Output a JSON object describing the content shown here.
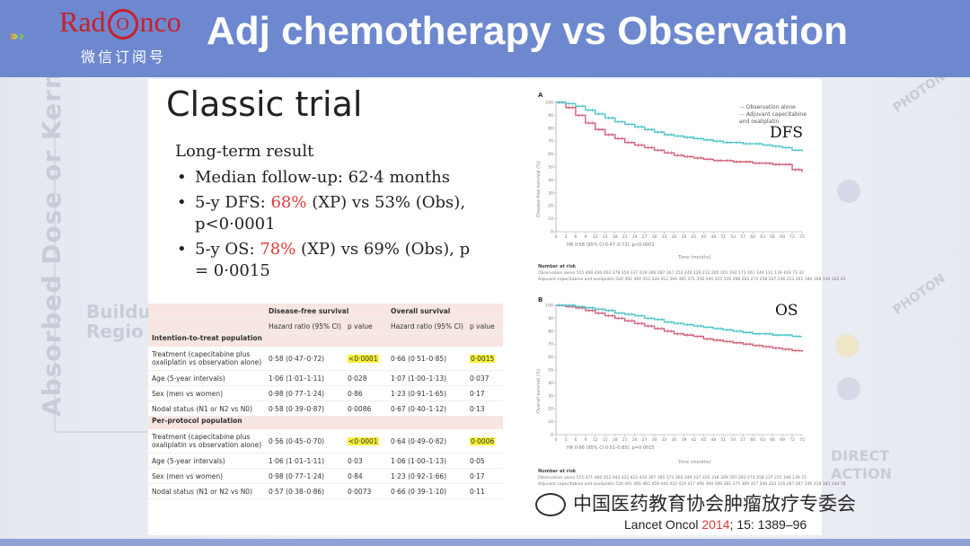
{
  "header": {
    "logo": {
      "part1": "Rad",
      "o": "O",
      "part2": "nco",
      "subtitle": "微信订阅号"
    },
    "title": "Adj chemotherapy vs Observation",
    "colors": {
      "bar": "#6d88cf",
      "logo_red": "#c8202a",
      "arrow1": "#f5a623",
      "arrow2": "#e4d12a",
      "arrow3": "#5b9bd5",
      "arrow4": "#8ec43d"
    }
  },
  "background": {
    "vertical_text": "Absorbed Dose or Kerma",
    "left_label": [
      "Buildu",
      "Regio"
    ],
    "right_label": [
      "DIRECT",
      "ACTION"
    ],
    "photon_a": "PHOTON",
    "photon_b": "PHOTON"
  },
  "slide": {
    "title": "Classic trial",
    "subtitle": "Long-term result",
    "bullets": [
      {
        "text": "Median follow-up: 62·4 months"
      },
      {
        "pre": "5-y DFS: ",
        "hl": "68%",
        "post": " (XP) vs 53% (Obs), p<0·0001"
      },
      {
        "pre": "5-y OS: ",
        "hl": "78%",
        "post": " (XP) vs 69% (Obs), p = 0·0015"
      }
    ]
  },
  "table": {
    "group_headers": [
      "Disease-free survival",
      "Overall survival"
    ],
    "col_headers": [
      "Hazard ratio (95% CI)",
      "p value",
      "Hazard ratio (95% CI)",
      "p value"
    ],
    "sections": [
      {
        "title": "Intention-to-treat population",
        "rows": [
          {
            "label": "Treatment (capecitabine plus oxaliplatin vs observation alone)",
            "dfs_hr": "0·58 (0·47–0·72)",
            "dfs_p": "<0·0001",
            "os_hr": "0·66 (0·51–0·85)",
            "os_p": "0·0015",
            "highlight": true
          },
          {
            "label": "Age (5-year intervals)",
            "dfs_hr": "1·06 (1·01–1·11)",
            "dfs_p": "0·028",
            "os_hr": "1·07 (1·00–1·13)",
            "os_p": "0·037"
          },
          {
            "label": "Sex (men vs women)",
            "dfs_hr": "0·98 (0·77–1·24)",
            "dfs_p": "0·86",
            "os_hr": "1·23 (0·91–1·65)",
            "os_p": "0·17"
          },
          {
            "label": "Nodal status (N1 or N2 vs N0)",
            "dfs_hr": "0·58 (0·39–0·87)",
            "dfs_p": "0·0086",
            "os_hr": "0·67 (0·40–1·12)",
            "os_p": "0·13"
          }
        ]
      },
      {
        "title": "Per-protocol population",
        "rows": [
          {
            "label": "Treatment (capecitabine plus oxaliplatin vs observation alone)",
            "dfs_hr": "0·56 (0·45–0·70)",
            "dfs_p": "<0·0001",
            "os_hr": "0·64 (0·49–0·82)",
            "os_p": "0·0006",
            "highlight": true
          },
          {
            "label": "Age (5-year intervals)",
            "dfs_hr": "1·06 (1·01–1·11)",
            "dfs_p": "0·03",
            "os_hr": "1·06 (1·00–1·13)",
            "os_p": "0·05"
          },
          {
            "label": "Sex (men vs women)",
            "dfs_hr": "0·98 (0·77–1·24)",
            "dfs_p": "0·84",
            "os_hr": "1·23 (0·92–1·66)",
            "os_p": "0·17"
          },
          {
            "label": "Nodal status (N1 or N2 vs N0)",
            "dfs_hr": "0·57 (0·38–0·86)",
            "dfs_p": "0·0073",
            "os_hr": "0·66 (0·39–1·10)",
            "os_p": "0·11"
          }
        ]
      }
    ]
  },
  "chart_data": [
    {
      "type": "line",
      "panel": "A",
      "label": "DFS",
      "xlabel": "Time (months)",
      "ylabel": "Disease-free survival (%)",
      "x_ticks": [
        0,
        3,
        6,
        9,
        12,
        15,
        18,
        21,
        24,
        27,
        30,
        33,
        36,
        39,
        42,
        45,
        48,
        51,
        54,
        57,
        60,
        63,
        66,
        69,
        72,
        75
      ],
      "y_ticks": [
        0,
        10,
        20,
        30,
        40,
        50,
        60,
        70,
        80,
        90,
        100
      ],
      "ylim": [
        0,
        100
      ],
      "xlim": [
        0,
        75
      ],
      "legend": [
        "Observation alone",
        "Adjuvant capecitabine and oxaliplatin"
      ],
      "hr_text": "HR 0·58 (95% CI 0·47–0·72); p<0·0001",
      "series": [
        {
          "name": "Observation alone",
          "color": "#d0607a",
          "x": [
            0,
            3,
            6,
            9,
            12,
            15,
            18,
            21,
            24,
            27,
            30,
            33,
            36,
            39,
            42,
            45,
            48,
            51,
            54,
            57,
            60,
            63,
            66,
            69,
            72,
            75
          ],
          "values": [
            100,
            96,
            90,
            84,
            79,
            75,
            72,
            69,
            67,
            65,
            63,
            61,
            59,
            58,
            57,
            56,
            55,
            55,
            54,
            54,
            53,
            53,
            52,
            52,
            48,
            46
          ]
        },
        {
          "name": "Adjuvant capecitabine and oxaliplatin",
          "color": "#4fc4c7",
          "x": [
            0,
            3,
            6,
            9,
            12,
            15,
            18,
            21,
            24,
            27,
            30,
            33,
            36,
            39,
            42,
            45,
            48,
            51,
            54,
            57,
            60,
            63,
            66,
            69,
            72,
            75
          ],
          "values": [
            100,
            99,
            97,
            94,
            91,
            88,
            85,
            83,
            81,
            79,
            77,
            75,
            74,
            73,
            72,
            71,
            70,
            69,
            69,
            68,
            68,
            67,
            66,
            65,
            63,
            62
          ]
        }
      ],
      "number_at_risk_title": "Number at risk",
      "number_at_risk_rows": [
        {
          "label": "Observation alone",
          "values": "515 460 430 402 378 359 337 319 306 287 267 252 240 229 212 205 201 192 173 161 146 131 119 103 73 32"
        },
        {
          "label": "Adjuvant capecitabine and oxaliplatin",
          "values": "520 492 469 452 428 412 394 385 371 356 340 325 316 298 283 274 258 247 236 212 201 184 168 140 102 45"
        }
      ]
    },
    {
      "type": "line",
      "panel": "B",
      "label": "OS",
      "xlabel": "Time (months)",
      "ylabel": "Overall survival (%)",
      "x_ticks": [
        0,
        3,
        6,
        9,
        12,
        15,
        18,
        21,
        24,
        27,
        30,
        33,
        36,
        39,
        42,
        45,
        48,
        51,
        54,
        57,
        60,
        63,
        66,
        69,
        72,
        75
      ],
      "y_ticks": [
        0,
        10,
        20,
        30,
        40,
        50,
        60,
        70,
        80,
        90,
        100
      ],
      "ylim": [
        0,
        100
      ],
      "xlim": [
        0,
        75
      ],
      "hr_text": "HR 0·66 (95% CI 0·51–0·85); p=0·0015",
      "series": [
        {
          "name": "Observation alone",
          "color": "#d0607a",
          "x": [
            0,
            3,
            6,
            9,
            12,
            15,
            18,
            21,
            24,
            27,
            30,
            33,
            36,
            39,
            42,
            45,
            48,
            51,
            54,
            57,
            60,
            63,
            66,
            69,
            72,
            75
          ],
          "values": [
            100,
            99,
            98,
            96,
            94,
            92,
            90,
            88,
            86,
            84,
            82,
            80,
            78,
            77,
            76,
            74,
            73,
            72,
            71,
            70,
            69,
            68,
            67,
            66,
            65,
            64
          ]
        },
        {
          "name": "Adjuvant capecitabine and oxaliplatin",
          "color": "#4fc4c7",
          "x": [
            0,
            3,
            6,
            9,
            12,
            15,
            18,
            21,
            24,
            27,
            30,
            33,
            36,
            39,
            42,
            45,
            48,
            51,
            54,
            57,
            60,
            63,
            66,
            69,
            72,
            75
          ],
          "values": [
            100,
            100,
            99,
            98,
            97,
            96,
            94,
            93,
            92,
            90,
            89,
            87,
            86,
            85,
            84,
            83,
            82,
            81,
            80,
            79,
            78,
            78,
            77,
            77,
            76,
            76
          ]
        }
      ],
      "number_at_risk_title": "Number at risk",
      "number_at_risk_rows": [
        {
          "label": "Observation alone",
          "values": "515 471 460 452 442 431 422 410 397 385 371 360 349 337 326 318 309 297 283 274 258 237 215 180 139 72"
        },
        {
          "label": "Adjuvant capecitabine and oxaliplatin",
          "values": "520 491 481 465 459 444 432 424 417 406 394 389 381 375 369 357 340 324 310 287 267 246 218 183 144 78"
        }
      ]
    }
  ],
  "citation": {
    "journal": "Lancet Oncol ",
    "year": "2014",
    "rest": "; 15: 1389–96"
  },
  "watermark": {
    "text": "中国医药教育协会肿瘤放疗专委会"
  }
}
